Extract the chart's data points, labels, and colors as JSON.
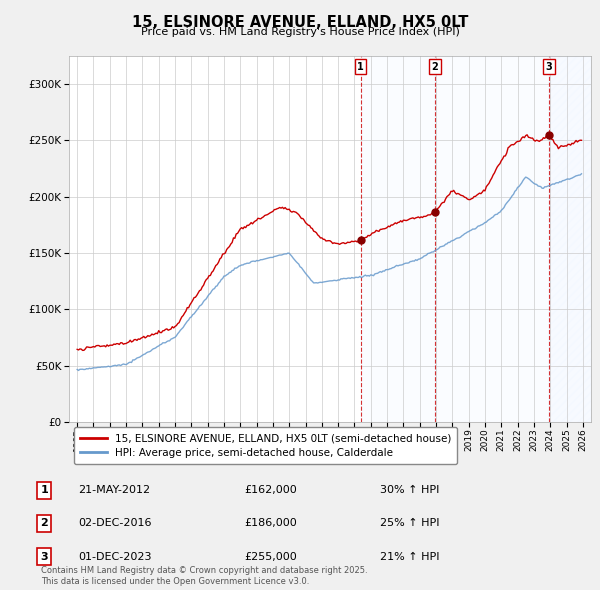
{
  "title": "15, ELSINORE AVENUE, ELLAND, HX5 0LT",
  "subtitle": "Price paid vs. HM Land Registry's House Price Index (HPI)",
  "legend_line1": "15, ELSINORE AVENUE, ELLAND, HX5 0LT (semi-detached house)",
  "legend_line2": "HPI: Average price, semi-detached house, Calderdale",
  "footer": "Contains HM Land Registry data © Crown copyright and database right 2025.\nThis data is licensed under the Open Government Licence v3.0.",
  "sale_points": [
    {
      "num": 1,
      "date": "21-MAY-2012",
      "price": 162000,
      "hpi_pct": "30% ↑ HPI",
      "year": 2012.37
    },
    {
      "num": 2,
      "date": "02-DEC-2016",
      "price": 186000,
      "hpi_pct": "25% ↑ HPI",
      "year": 2016.92
    },
    {
      "num": 3,
      "date": "01-DEC-2023",
      "price": 255000,
      "hpi_pct": "21% ↑ HPI",
      "year": 2023.92
    }
  ],
  "price_color": "#cc0000",
  "hpi_color": "#6699cc",
  "background_color": "#f0f0f0",
  "plot_bg_color": "#ffffff",
  "shade_color": "#ddeeff",
  "ylim": [
    0,
    325000
  ],
  "xlim_start": 1994.5,
  "xlim_end": 2026.5
}
